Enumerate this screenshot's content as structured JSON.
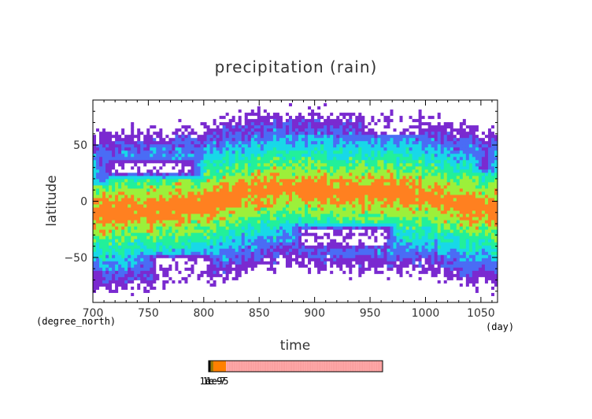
{
  "chart_data": {
    "type": "heatmap",
    "title": "precipitation (rain)",
    "xlabel": "time",
    "ylabel": "latitude",
    "x_unit": "(day)",
    "y_unit": "(degree_north)",
    "xlim": [
      700,
      1065
    ],
    "ylim": [
      -90,
      90
    ],
    "x_ticks": [
      700,
      750,
      800,
      850,
      900,
      950,
      1000,
      1050
    ],
    "y_ticks": [
      50,
      0,
      -50
    ],
    "x_tick_labels": [
      "700",
      "750",
      "800",
      "850",
      "900",
      "950",
      "1000",
      "1050"
    ],
    "y_tick_labels": [
      "50",
      "0",
      "−50"
    ],
    "colorbar": {
      "tick_labels": [
        "1e−9",
        "1e−7",
        "1e−5"
      ],
      "segments": [
        {
          "color": "#000000",
          "share": 0.012
        },
        {
          "color": "#9e7a00",
          "share": 0.015
        },
        {
          "color": "#ff8000",
          "share": 0.073
        },
        {
          "color": "#ffaaaa",
          "share": 0.9
        }
      ]
    },
    "colors": {
      "white": "#ffffff",
      "purple": "#7a2ad0",
      "blue": "#4a6cf5",
      "cyan": "#18d8e8",
      "spring_green": "#22f09a",
      "yellow_green": "#9cf03a",
      "orange": "#ff8020"
    },
    "level_order": [
      "white",
      "purple",
      "blue",
      "cyan",
      "spring_green",
      "yellow_green",
      "orange"
    ],
    "features": {
      "rain_band_center_lat": [
        [
          700,
          -10
        ],
        [
          760,
          -7
        ],
        [
          800,
          -3
        ],
        [
          830,
          5
        ],
        [
          870,
          12
        ],
        [
          900,
          10
        ],
        [
          930,
          7
        ],
        [
          960,
          8
        ],
        [
          1000,
          5
        ],
        [
          1030,
          -3
        ],
        [
          1065,
          -8
        ]
      ],
      "dry_zones": [
        {
          "t0": 706,
          "t1": 800,
          "lat0": 20,
          "lat1": 40,
          "level": 0.0
        },
        {
          "t0": 700,
          "t1": 715,
          "lat0": 15,
          "lat1": 45,
          "level": 0.0
        },
        {
          "t0": 1043,
          "t1": 1065,
          "lat0": 25,
          "lat1": 45,
          "level": 0.0
        },
        {
          "t0": 878,
          "t1": 975,
          "lat0": -45,
          "lat1": -20,
          "level": 0.0
        },
        {
          "t0": 935,
          "t1": 1005,
          "lat0": 55,
          "lat1": 90,
          "level": 0.0
        },
        {
          "t0": 850,
          "t1": 900,
          "lat0": 70,
          "lat1": 90,
          "level": 0.1
        },
        {
          "t0": 745,
          "t1": 815,
          "lat0": -90,
          "lat1": -45,
          "level": 0.0
        },
        {
          "t0": 700,
          "t1": 745,
          "lat0": -90,
          "lat1": -78,
          "level": 0.1
        },
        {
          "t0": 1010,
          "t1": 1045,
          "lat0": -90,
          "lat1": -78,
          "level": 0.2
        }
      ]
    }
  }
}
